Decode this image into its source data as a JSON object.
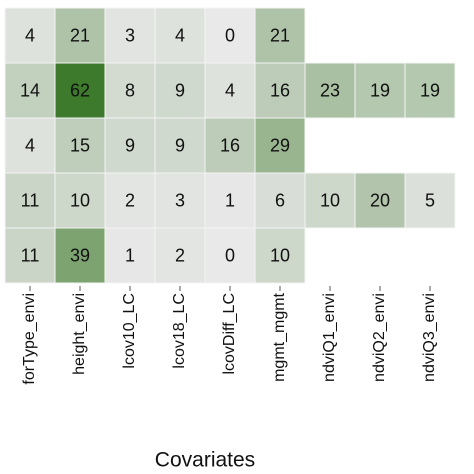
{
  "chart_data": {
    "type": "heatmap",
    "x_label": "Covariates",
    "categories": [
      "forType_envi",
      "height_envi",
      "lcov10_LC",
      "lcov18_LC",
      "lcovDiff_LC",
      "mgmt_mgmt",
      "ndviQ1_envi",
      "ndviQ2_envi",
      "ndviQ3_envi"
    ],
    "rows": [
      [
        4,
        21,
        3,
        4,
        0,
        21,
        null,
        null,
        null
      ],
      [
        14,
        62,
        8,
        9,
        4,
        16,
        23,
        19,
        19
      ],
      [
        4,
        15,
        9,
        9,
        16,
        29,
        null,
        null,
        null
      ],
      [
        11,
        10,
        2,
        3,
        1,
        6,
        10,
        20,
        5
      ],
      [
        11,
        39,
        1,
        2,
        0,
        10,
        null,
        null,
        null
      ]
    ],
    "color_range": [
      "#e9e9e9",
      "#3d7a2b"
    ]
  }
}
